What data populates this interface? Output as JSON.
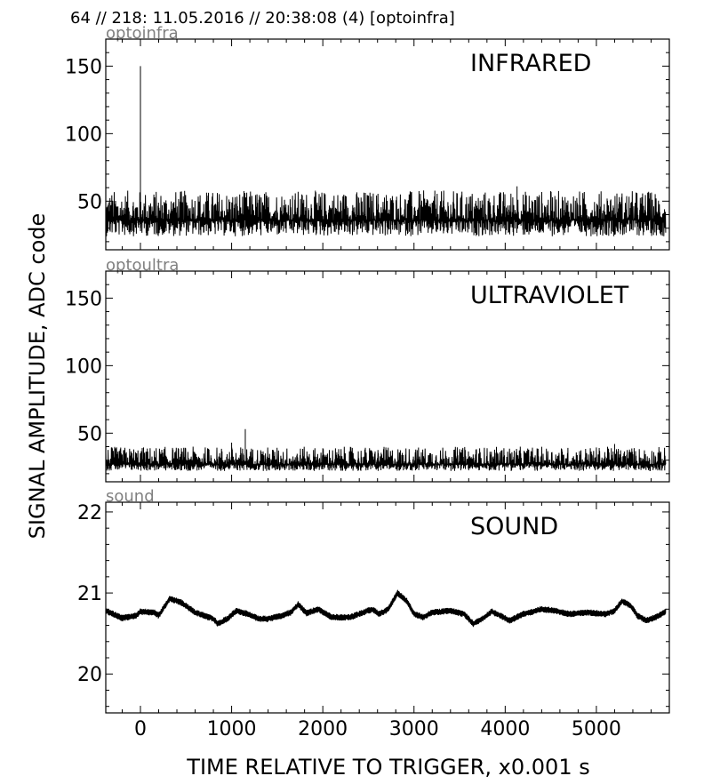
{
  "header": "64 // 218:   11.05.2016 // 20:38:08 (4)  [optoinfra]",
  "ylabel": "SIGNAL AMPLITUDE,  ADC code",
  "xlabel": "TIME RELATIVE TO TRIGGER,   x0.001 s",
  "chart_data": [
    {
      "type": "line",
      "tag": "optoinfra",
      "title": "INFRARED",
      "xlim": [
        -380,
        5800
      ],
      "ylim": [
        14,
        170
      ],
      "x_ticks": [
        0,
        1000,
        2000,
        3000,
        4000,
        5000
      ],
      "y_ticks": [
        50,
        100,
        150
      ],
      "x_range": [
        -380,
        5760
      ],
      "baseline": 36,
      "noise_low": 24,
      "noise_high": 58,
      "spikes": [
        {
          "x": 0,
          "y": 150
        },
        {
          "x": 4130,
          "y": 61
        }
      ]
    },
    {
      "type": "line",
      "tag": "optoultra",
      "title": "ULTRAVIOLET",
      "xlim": [
        -380,
        5800
      ],
      "ylim": [
        14,
        170
      ],
      "x_ticks": [
        0,
        1000,
        2000,
        3000,
        4000,
        5000
      ],
      "y_ticks": [
        50,
        100,
        150
      ],
      "x_range": [
        -380,
        5760
      ],
      "baseline": 27,
      "noise_low": 22,
      "noise_high": 40,
      "spikes": [
        {
          "x": 1150,
          "y": 53
        },
        {
          "x": 1000,
          "y": 43
        },
        {
          "x": 5200,
          "y": 42
        }
      ]
    },
    {
      "type": "line",
      "tag": "sound",
      "title": "SOUND",
      "xlim": [
        -380,
        5800
      ],
      "ylim": [
        19.52,
        22.12
      ],
      "x_ticks": [
        0,
        1000,
        2000,
        3000,
        4000,
        5000
      ],
      "y_ticks": [
        20,
        21,
        22
      ],
      "x_range": [
        -380,
        5760
      ],
      "points": [
        [
          -380,
          20.78
        ],
        [
          -200,
          20.69
        ],
        [
          -50,
          20.72
        ],
        [
          0,
          20.77
        ],
        [
          150,
          20.76
        ],
        [
          200,
          20.72
        ],
        [
          320,
          20.93
        ],
        [
          450,
          20.88
        ],
        [
          600,
          20.76
        ],
        [
          800,
          20.68
        ],
        [
          850,
          20.62
        ],
        [
          950,
          20.68
        ],
        [
          1050,
          20.78
        ],
        [
          1150,
          20.75
        ],
        [
          1300,
          20.68
        ],
        [
          1400,
          20.68
        ],
        [
          1550,
          20.72
        ],
        [
          1650,
          20.76
        ],
        [
          1730,
          20.86
        ],
        [
          1820,
          20.75
        ],
        [
          1950,
          20.8
        ],
        [
          2100,
          20.7
        ],
        [
          2300,
          20.7
        ],
        [
          2400,
          20.74
        ],
        [
          2540,
          20.8
        ],
        [
          2620,
          20.74
        ],
        [
          2720,
          20.8
        ],
        [
          2820,
          21.0
        ],
        [
          2920,
          20.9
        ],
        [
          3000,
          20.74
        ],
        [
          3100,
          20.7
        ],
        [
          3200,
          20.76
        ],
        [
          3400,
          20.78
        ],
        [
          3550,
          20.74
        ],
        [
          3650,
          20.62
        ],
        [
          3750,
          20.68
        ],
        [
          3850,
          20.77
        ],
        [
          3950,
          20.72
        ],
        [
          4050,
          20.66
        ],
        [
          4200,
          20.74
        ],
        [
          4400,
          20.8
        ],
        [
          4550,
          20.78
        ],
        [
          4700,
          20.74
        ],
        [
          4900,
          20.76
        ],
        [
          5100,
          20.74
        ],
        [
          5200,
          20.78
        ],
        [
          5280,
          20.9
        ],
        [
          5380,
          20.84
        ],
        [
          5450,
          20.72
        ],
        [
          5550,
          20.66
        ],
        [
          5650,
          20.7
        ],
        [
          5760,
          20.77
        ]
      ],
      "noise": 0.04
    }
  ]
}
